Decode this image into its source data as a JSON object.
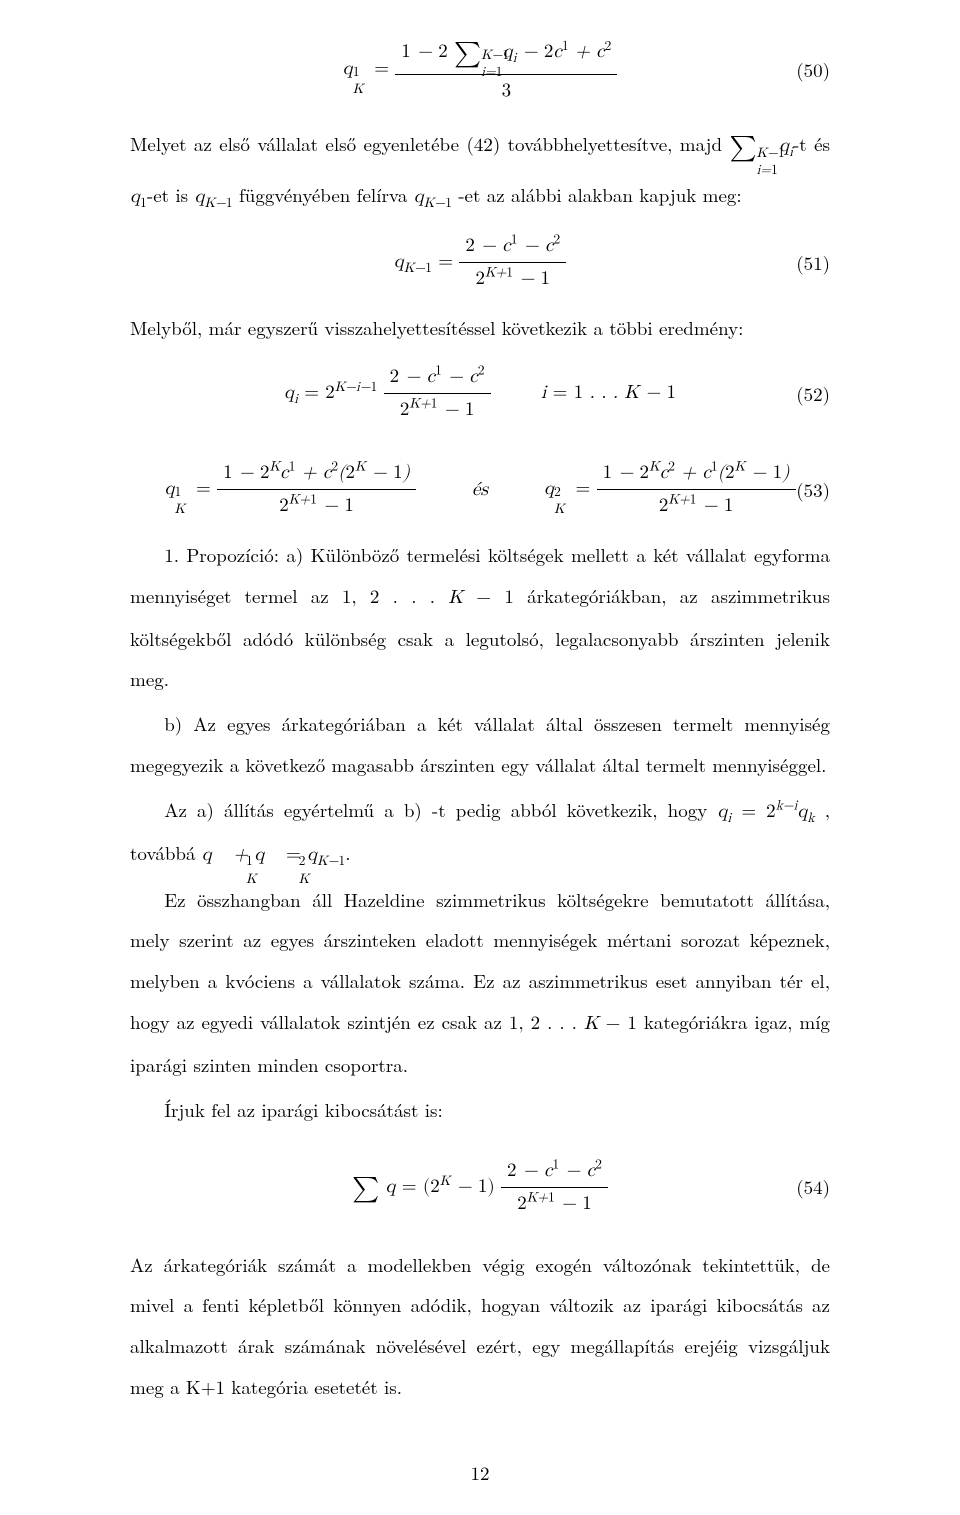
{
  "page_number": "12",
  "colors": {
    "text": "#000000",
    "background": "#ffffff"
  },
  "font": {
    "family": "Latin Modern Roman / Computer Modern",
    "body_size_pt": 12
  },
  "equations": {
    "eq50": {
      "number": "(50)",
      "tex": "q_K^1 = \\frac{1 - 2\\sum_{i=1}^{K-1} q_i - 2c^1 + c^2}{3}"
    },
    "eq51": {
      "number": "(51)",
      "tex": "q_{K-1} = \\frac{2 - c^1 - c^2}{2^{K+1} - 1}"
    },
    "eq52": {
      "number": "(52)",
      "tex": "q_i = 2^{K-i-1} \\frac{2 - c^1 - c^2}{2^{K+1} - 1} \\quad i = 1 \\ldots K-1"
    },
    "eq53": {
      "number": "(53)",
      "tex_left": "q_K^1 = \\frac{1 - 2^K c^1 + c^2 (2^K - 1)}{2^{K+1} - 1}",
      "connector": "és",
      "tex_right": "q_K^2 = \\frac{1 - 2^K c^2 + c^1 (2^K - 1)}{2^{K+1} - 1}"
    },
    "eq54": {
      "number": "(54)",
      "tex": "\\sum q = (2^K - 1) \\frac{2 - c^1 - c^2}{2^{K+1} - 1}"
    }
  },
  "paragraphs": {
    "p1": "Melyet az első vállalat első egyenletébe (42) továbbhelyettesítve, majd ∑_{i=1}^{K−1} q_i-t és q_1-et is q_{K−1} függvényében felírva q_{K−1} -et az alábbi alakban kapjuk meg:",
    "p2": "Melyből, már egyszerű visszahelyettesítéssel következik a többi eredmény:",
    "p3": "1. Propozíció: a) Különböző termelési költségek mellett a két vállalat egyforma mennyiséget termel az 1, 2 . . . K − 1 árkategóriákban, az aszimmetrikus költségekből adódó különbség csak a legutolsó, legalacsonyabb árszinten jelenik meg.",
    "p4": "b) Az egyes árkategóriában a két vállalat által összesen termelt mennyiség megegyezik a következő magasabb árszinten egy vállalat által termelt mennyiséggel.",
    "p5": "Az a) állítás egyértelmű a b) -t pedig abból következik, hogy q_i = 2^{k−i} q_k , továbbá q_K^1 + q_K^2 = q_{K−1}.",
    "p6": "Ez összhangban áll Hazeldine szimmetrikus költségekre bemutatott állítása, mely szerint az egyes árszinteken eladott mennyiségek mértani sorozat képeznek, melyben a kvóciens a vállalatok száma. Ez az aszimmetrikus eset annyiban tér el, hogy az egyedi vállalatok szintjén ez csak az 1, 2 . . . K − 1 kategóriákra igaz, míg iparági szinten minden csoportra.",
    "p7": "Írjuk fel az iparági kibocsátást is:",
    "p8": "Az árkategóriák számát a modellekben végig exogén változónak tekintettük, de mivel a fenti képletből könnyen adódik, hogyan változik az iparági kibocsátás az alkalmazott árak számának növelésével ezért, egy megállapítás erejéig vizsgáljuk meg a K+1 kategória esetetét is."
  }
}
